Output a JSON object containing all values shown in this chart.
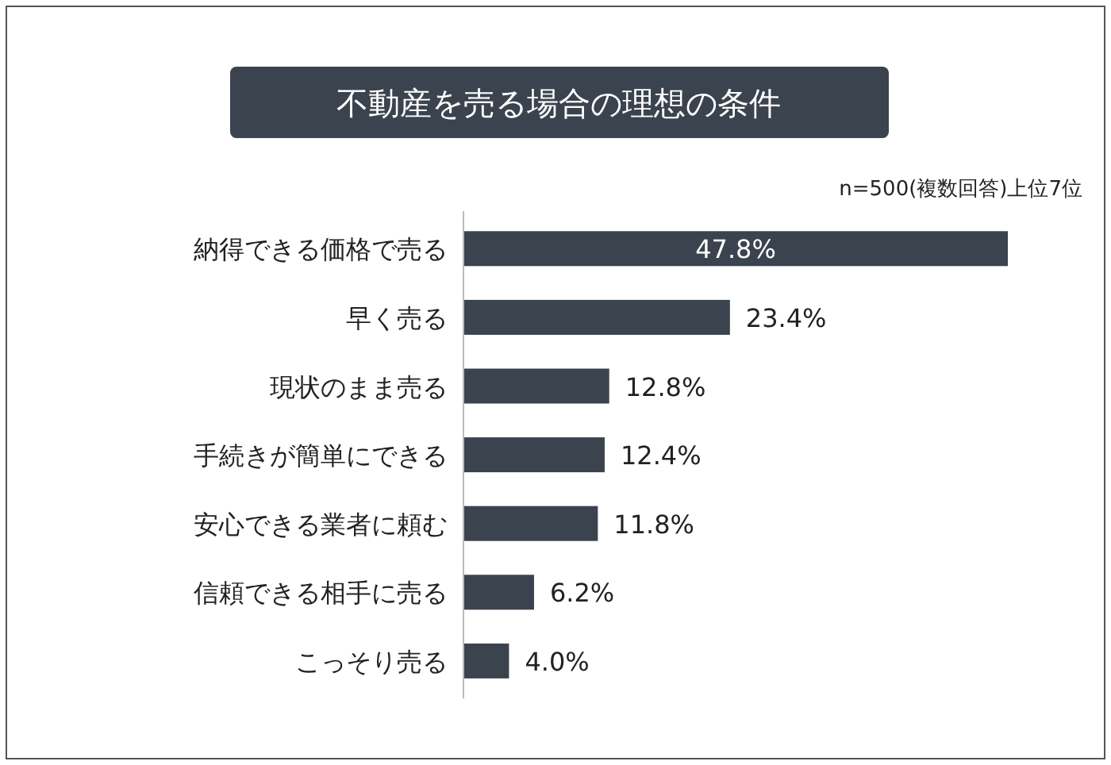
{
  "chart_data": {
    "type": "bar",
    "orientation": "horizontal",
    "title": "不動産を売る場合の理想の条件",
    "annotations": [
      "n=500(複数回答)上位7位"
    ],
    "categories": [
      "納得できる価格で売る",
      "早く売る",
      "現状のまま売る",
      "手続きが簡単にできる",
      "安心できる業者に頼む",
      "信頼できる相手に売る",
      "こっそり売る"
    ],
    "values": [
      47.8,
      23.4,
      12.8,
      12.4,
      11.8,
      6.2,
      4.0
    ],
    "value_labels": [
      "47.8%",
      "23.4%",
      "12.8%",
      "12.4%",
      "11.8%",
      "6.2%",
      "4.0%"
    ],
    "color": "#3b434e"
  }
}
